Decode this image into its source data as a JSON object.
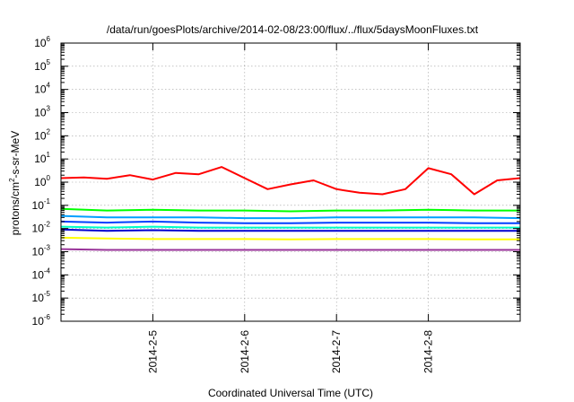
{
  "chart_data": {
    "type": "line",
    "title": "/data/run/goesPlots/archive/2014-02-08/23:00/flux/../flux/5daysMoonFluxes.txt",
    "xlabel": "Coordinated Universal Time (UTC)",
    "ylabel": "protons/cm²-s-sr-MeV",
    "ylabel_parts": [
      "protons/cm",
      "2",
      "-s-sr-MeV"
    ],
    "yscale": "log",
    "ylim": [
      1e-06,
      1000000.0
    ],
    "y_ticks": [
      {
        "base": "10",
        "exp": "-6",
        "value": 1e-06
      },
      {
        "base": "10",
        "exp": "-5",
        "value": 1e-05
      },
      {
        "base": "10",
        "exp": "-4",
        "value": 0.0001
      },
      {
        "base": "10",
        "exp": "-3",
        "value": 0.001
      },
      {
        "base": "10",
        "exp": "-2",
        "value": 0.01
      },
      {
        "base": "10",
        "exp": "-1",
        "value": 0.1
      },
      {
        "base": "10",
        "exp": "0",
        "value": 1
      },
      {
        "base": "10",
        "exp": "1",
        "value": 10
      },
      {
        "base": "10",
        "exp": "2",
        "value": 100
      },
      {
        "base": "10",
        "exp": "3",
        "value": 1000
      },
      {
        "base": "10",
        "exp": "4",
        "value": 10000
      },
      {
        "base": "10",
        "exp": "5",
        "value": 100000
      },
      {
        "base": "10",
        "exp": "6",
        "value": 1000000
      }
    ],
    "xlim": [
      "2014-02-04 00:00",
      "2014-02-09 00:00"
    ],
    "x_ticks": [
      {
        "label": "2014-2-5",
        "value": "2014-02-05 00:00"
      },
      {
        "label": "2014-2-6",
        "value": "2014-02-06 00:00"
      },
      {
        "label": "2014-2-7",
        "value": "2014-02-07 00:00"
      },
      {
        "label": "2014-2-8",
        "value": "2014-02-08 00:00"
      }
    ],
    "grid": true,
    "legend": "none",
    "series": [
      {
        "color": "#ff0000",
        "x": [
          "2014-02-04 00:00",
          "2014-02-04 06:00",
          "2014-02-04 12:00",
          "2014-02-04 18:00",
          "2014-02-05 00:00",
          "2014-02-05 06:00",
          "2014-02-05 12:00",
          "2014-02-05 18:00",
          "2014-02-06 00:00",
          "2014-02-06 06:00",
          "2014-02-06 12:00",
          "2014-02-06 18:00",
          "2014-02-07 00:00",
          "2014-02-07 06:00",
          "2014-02-07 12:00",
          "2014-02-07 18:00",
          "2014-02-08 00:00",
          "2014-02-08 06:00",
          "2014-02-08 12:00",
          "2014-02-08 18:00",
          "2014-02-09 00:00"
        ],
        "values": [
          1.5,
          1.6,
          1.4,
          2.0,
          1.3,
          2.5,
          2.2,
          4.5,
          1.5,
          0.5,
          0.8,
          1.2,
          0.5,
          0.35,
          0.3,
          0.5,
          4.0,
          2.2,
          0.3,
          1.2,
          1.5
        ]
      },
      {
        "color": "#00ff00",
        "x": [
          "2014-02-04 00:00",
          "2014-02-04 12:00",
          "2014-02-05 00:00",
          "2014-02-05 12:00",
          "2014-02-06 00:00",
          "2014-02-06 12:00",
          "2014-02-07 00:00",
          "2014-02-07 12:00",
          "2014-02-08 00:00",
          "2014-02-08 12:00",
          "2014-02-09 00:00"
        ],
        "values": [
          0.07,
          0.06,
          0.065,
          0.06,
          0.06,
          0.055,
          0.06,
          0.06,
          0.065,
          0.06,
          0.06
        ]
      },
      {
        "color": "#00a0ff",
        "x": [
          "2014-02-04 00:00",
          "2014-02-04 12:00",
          "2014-02-05 00:00",
          "2014-02-05 12:00",
          "2014-02-06 00:00",
          "2014-02-06 12:00",
          "2014-02-07 00:00",
          "2014-02-07 12:00",
          "2014-02-08 00:00",
          "2014-02-08 12:00",
          "2014-02-09 00:00"
        ],
        "values": [
          0.035,
          0.03,
          0.03,
          0.03,
          0.028,
          0.028,
          0.03,
          0.03,
          0.03,
          0.03,
          0.028
        ]
      },
      {
        "color": "#0040ff",
        "x": [
          "2014-02-04 00:00",
          "2014-02-04 12:00",
          "2014-02-05 00:00",
          "2014-02-05 12:00",
          "2014-02-06 00:00",
          "2014-02-06 12:00",
          "2014-02-07 00:00",
          "2014-02-07 12:00",
          "2014-02-08 00:00",
          "2014-02-08 12:00",
          "2014-02-09 00:00"
        ],
        "values": [
          0.02,
          0.018,
          0.02,
          0.018,
          0.017,
          0.017,
          0.018,
          0.018,
          0.018,
          0.017,
          0.017
        ]
      },
      {
        "color": "#00ffc8",
        "x": [
          "2014-02-04 00:00",
          "2014-02-04 12:00",
          "2014-02-05 00:00",
          "2014-02-05 12:00",
          "2014-02-06 00:00",
          "2014-02-06 12:00",
          "2014-02-07 00:00",
          "2014-02-07 12:00",
          "2014-02-08 00:00",
          "2014-02-08 12:00",
          "2014-02-09 00:00"
        ],
        "values": [
          0.012,
          0.011,
          0.012,
          0.011,
          0.011,
          0.011,
          0.011,
          0.011,
          0.011,
          0.011,
          0.011
        ]
      },
      {
        "color": "#0000d0",
        "x": [
          "2014-02-04 00:00",
          "2014-02-04 12:00",
          "2014-02-05 00:00",
          "2014-02-05 12:00",
          "2014-02-06 00:00",
          "2014-02-06 12:00",
          "2014-02-07 00:00",
          "2014-02-07 12:00",
          "2014-02-08 00:00",
          "2014-02-08 12:00",
          "2014-02-09 00:00"
        ],
        "values": [
          0.009,
          0.008,
          0.0085,
          0.008,
          0.008,
          0.008,
          0.008,
          0.008,
          0.008,
          0.008,
          0.008
        ]
      },
      {
        "color": "#ffff00",
        "x": [
          "2014-02-04 00:00",
          "2014-02-04 12:00",
          "2014-02-05 00:00",
          "2014-02-05 12:00",
          "2014-02-06 00:00",
          "2014-02-06 12:00",
          "2014-02-07 00:00",
          "2014-02-07 12:00",
          "2014-02-08 00:00",
          "2014-02-08 12:00",
          "2014-02-09 00:00"
        ],
        "values": [
          0.004,
          0.0037,
          0.0035,
          0.0035,
          0.0035,
          0.0034,
          0.0035,
          0.0035,
          0.0035,
          0.0034,
          0.0034
        ]
      },
      {
        "color": "#993399",
        "x": [
          "2014-02-04 00:00",
          "2014-02-04 12:00",
          "2014-02-05 00:00",
          "2014-02-05 12:00",
          "2014-02-06 00:00",
          "2014-02-06 12:00",
          "2014-02-07 00:00",
          "2014-02-07 12:00",
          "2014-02-08 00:00",
          "2014-02-08 12:00",
          "2014-02-09 00:00"
        ],
        "values": [
          0.0013,
          0.0012,
          0.0012,
          0.0012,
          0.0012,
          0.0012,
          0.0012,
          0.0012,
          0.0012,
          0.0012,
          0.0012
        ]
      }
    ]
  }
}
